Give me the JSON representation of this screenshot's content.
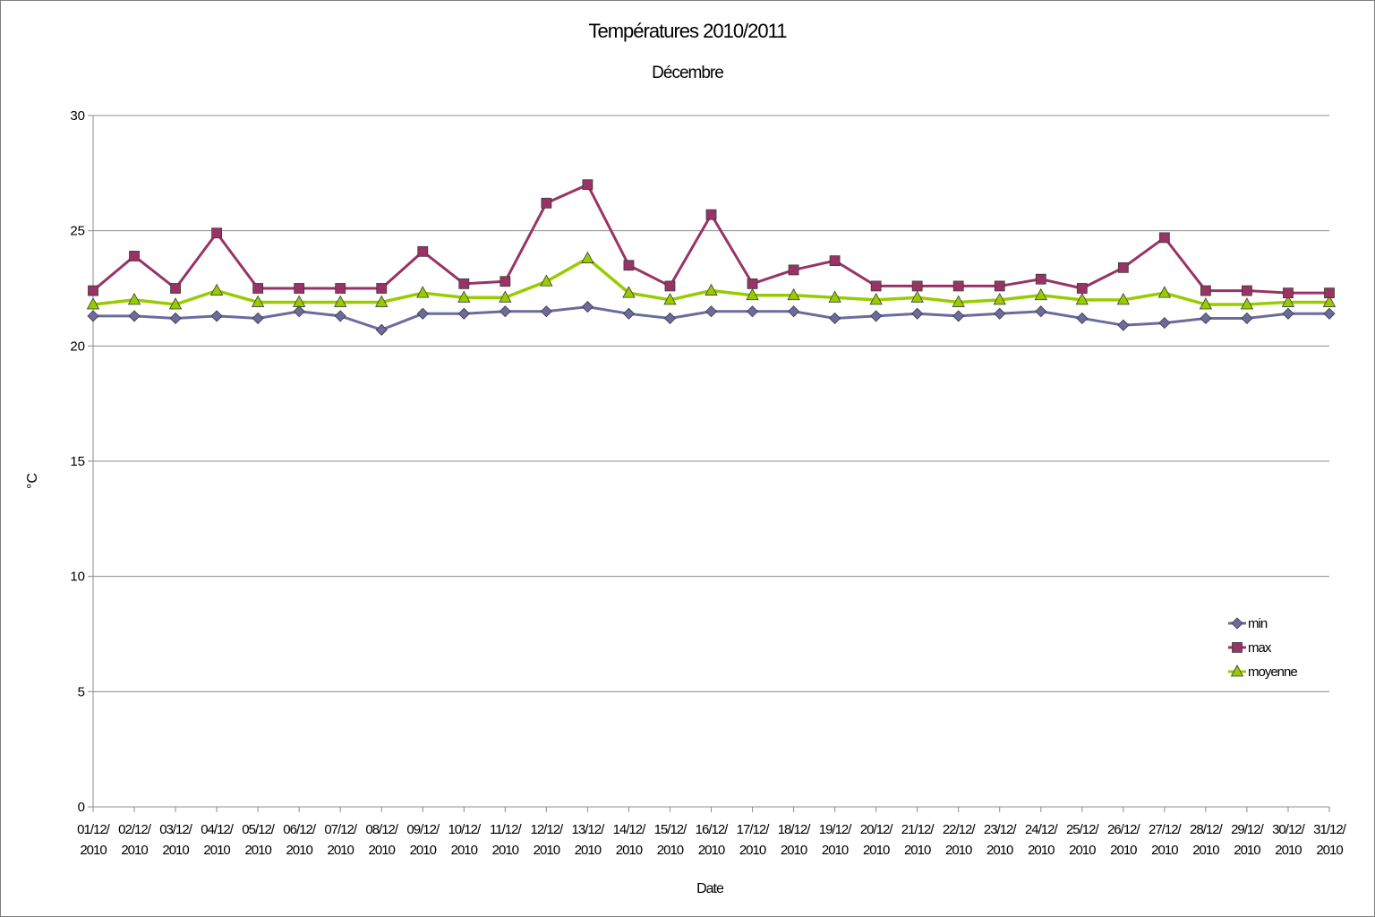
{
  "chart_data": {
    "type": "line",
    "title": "Températures 2010/2011",
    "subtitle": "Décembre",
    "xlabel": "Date",
    "ylabel": "°C",
    "ylim": [
      0,
      30
    ],
    "yticks": [
      0,
      5,
      10,
      15,
      20,
      25,
      30
    ],
    "grid": true,
    "legend_position": "right",
    "categories": [
      "01/12/2010",
      "02/12/2010",
      "03/12/2010",
      "04/12/2010",
      "05/12/2010",
      "06/12/2010",
      "07/12/2010",
      "08/12/2010",
      "09/12/2010",
      "10/12/2010",
      "11/12/2010",
      "12/12/2010",
      "13/12/2010",
      "14/12/2010",
      "15/12/2010",
      "16/12/2010",
      "17/12/2010",
      "18/12/2010",
      "19/12/2010",
      "20/12/2010",
      "21/12/2010",
      "22/12/2010",
      "23/12/2010",
      "24/12/2010",
      "25/12/2010",
      "26/12/2010",
      "27/12/2010",
      "28/12/2010",
      "29/12/2010",
      "30/12/2010",
      "31/12/2010"
    ],
    "series": [
      {
        "name": "min",
        "color": "#6b6b9e",
        "marker": "diamond",
        "values": [
          21.3,
          21.3,
          21.2,
          21.3,
          21.2,
          21.5,
          21.3,
          20.7,
          21.4,
          21.4,
          21.5,
          21.5,
          21.7,
          21.4,
          21.2,
          21.5,
          21.5,
          21.5,
          21.2,
          21.3,
          21.4,
          21.3,
          21.4,
          21.5,
          21.2,
          20.9,
          21.0,
          21.2,
          21.2,
          21.4,
          21.4
        ]
      },
      {
        "name": "max",
        "color": "#993366",
        "marker": "square",
        "values": [
          22.4,
          23.9,
          22.5,
          24.9,
          22.5,
          22.5,
          22.5,
          22.5,
          24.1,
          22.7,
          22.8,
          26.2,
          27.0,
          23.5,
          22.6,
          25.7,
          22.7,
          23.3,
          23.7,
          22.6,
          22.6,
          22.6,
          22.6,
          22.9,
          22.5,
          23.4,
          24.7,
          22.4,
          22.4,
          22.3,
          22.3
        ]
      },
      {
        "name": "moyenne",
        "color": "#99cc00",
        "marker": "triangle",
        "values": [
          21.8,
          22.0,
          21.8,
          22.4,
          21.9,
          21.9,
          21.9,
          21.9,
          22.3,
          22.1,
          22.1,
          22.8,
          23.8,
          22.3,
          22.0,
          22.4,
          22.2,
          22.2,
          22.1,
          22.0,
          22.1,
          21.9,
          22.0,
          22.2,
          22.0,
          22.0,
          22.3,
          21.8,
          21.8,
          21.9,
          21.9
        ]
      }
    ]
  }
}
